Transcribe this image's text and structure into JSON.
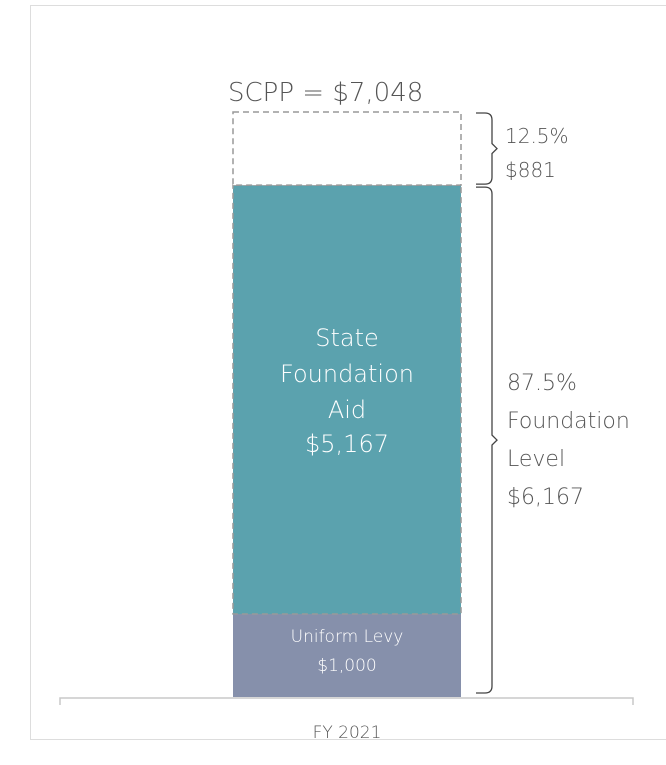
{
  "chart_data": {
    "type": "stacked_bar",
    "title": "SCPP = $7,048",
    "categories": [
      "FY 2021"
    ],
    "series": [
      {
        "name": "Uniform Levy",
        "color": "#8690ab",
        "values": [
          1000
        ],
        "value_labels": [
          "$1,000"
        ]
      },
      {
        "name": "State Foundation Aid",
        "color": "#5ba2ae",
        "values": [
          5167
        ],
        "value_labels": [
          "$5,167"
        ]
      },
      {
        "color": "#ffffff",
        "values": [
          881
        ],
        "value_labels": [
          "$881"
        ]
      }
    ],
    "annotations": [
      {
        "lines": [
          "12.5%"
        ]
      },
      {
        "lines": [
          "87.5%",
          "Foundation",
          "Level",
          "$6,167"
        ]
      }
    ]
  }
}
